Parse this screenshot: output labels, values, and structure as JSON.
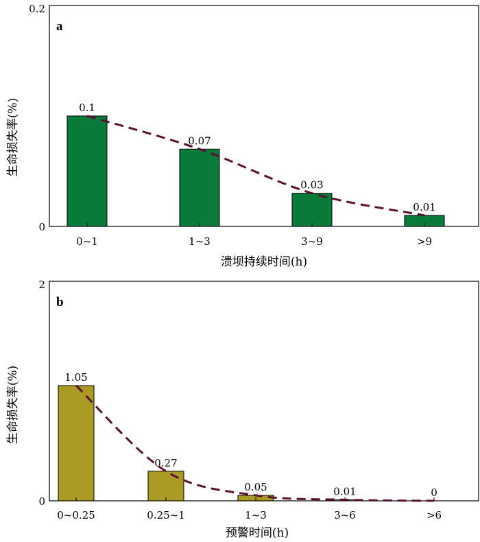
{
  "chart_data": [
    {
      "type": "bar",
      "panel_label": "a",
      "categories": [
        "0~1",
        "1~3",
        "3~9",
        ">9"
      ],
      "values": [
        0.1,
        0.07,
        0.03,
        0.01
      ],
      "data_labels": [
        "0.1",
        "0.07",
        "0.03",
        "0.01"
      ],
      "xlabel": "溃坝持续时间(h)",
      "ylabel": "生命损失率(%)",
      "ylim": [
        0,
        0.2
      ],
      "yticks": [
        "0",
        "0.2"
      ],
      "trend_line": "dashed",
      "bar_color": "#0a7a3a",
      "trend_color": "#5a1030"
    },
    {
      "type": "bar",
      "panel_label": "b",
      "categories": [
        "0~0.25",
        "0.25~1",
        "1~3",
        "3~6",
        ">6"
      ],
      "values": [
        1.05,
        0.27,
        0.05,
        0.01,
        0
      ],
      "data_labels": [
        "1.05",
        "0.27",
        "0.05",
        "0.01",
        "0"
      ],
      "xlabel": "预警时间(h)",
      "ylabel": "生命损失率(%)",
      "ylim": [
        0,
        2
      ],
      "yticks": [
        "0",
        "2"
      ],
      "trend_line": "dashed",
      "bar_color": "#a89a22",
      "trend_color": "#5a1030"
    }
  ]
}
